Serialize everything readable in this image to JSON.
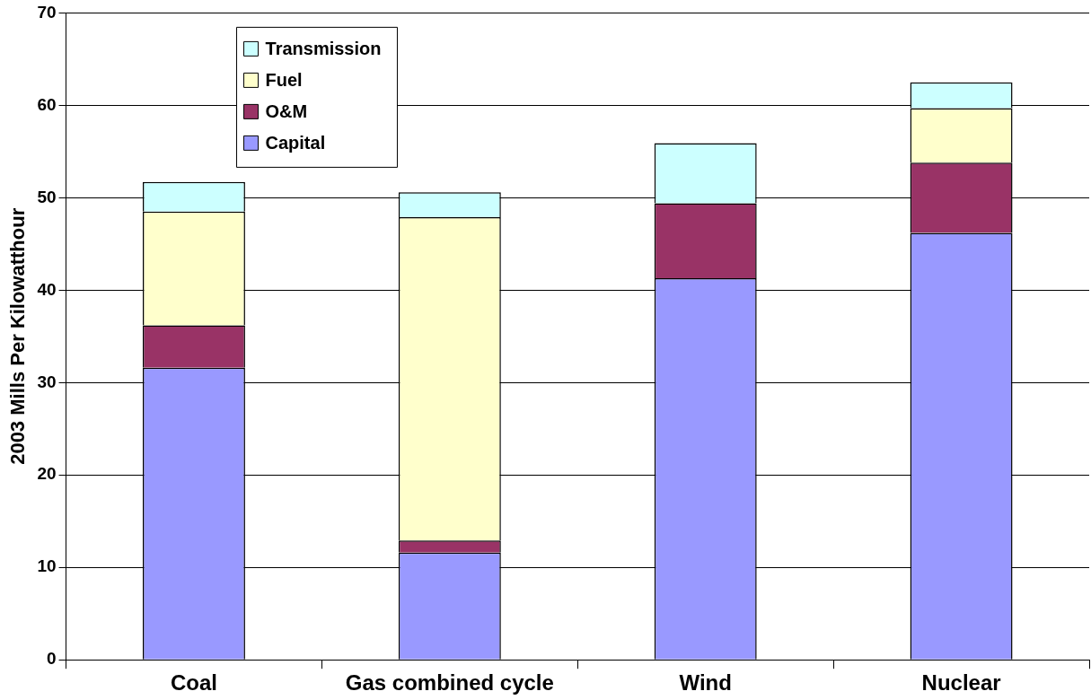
{
  "chart_data": {
    "type": "bar",
    "stacked": true,
    "ylabel": "2003 Mills Per Kilowatthour",
    "categories": [
      "Coal",
      "Gas combined cycle",
      "Wind",
      "Nuclear"
    ],
    "series": [
      {
        "name": "Capital",
        "color": "#9999ff",
        "values": [
          31.6,
          11.6,
          41.3,
          46.2
        ]
      },
      {
        "name": "O&M",
        "color": "#993366",
        "values": [
          4.6,
          1.3,
          8.1,
          7.6
        ]
      },
      {
        "name": "Fuel",
        "color": "#ffffcc",
        "values": [
          12.3,
          35.0,
          0,
          5.9
        ]
      },
      {
        "name": "Transmission",
        "color": "#ccffff",
        "values": [
          3.2,
          2.7,
          6.5,
          2.8
        ]
      }
    ],
    "ylim": [
      0,
      70
    ],
    "yticks": [
      0,
      10,
      20,
      30,
      40,
      50,
      60,
      70
    ],
    "grid": "y",
    "legend": "top left"
  }
}
